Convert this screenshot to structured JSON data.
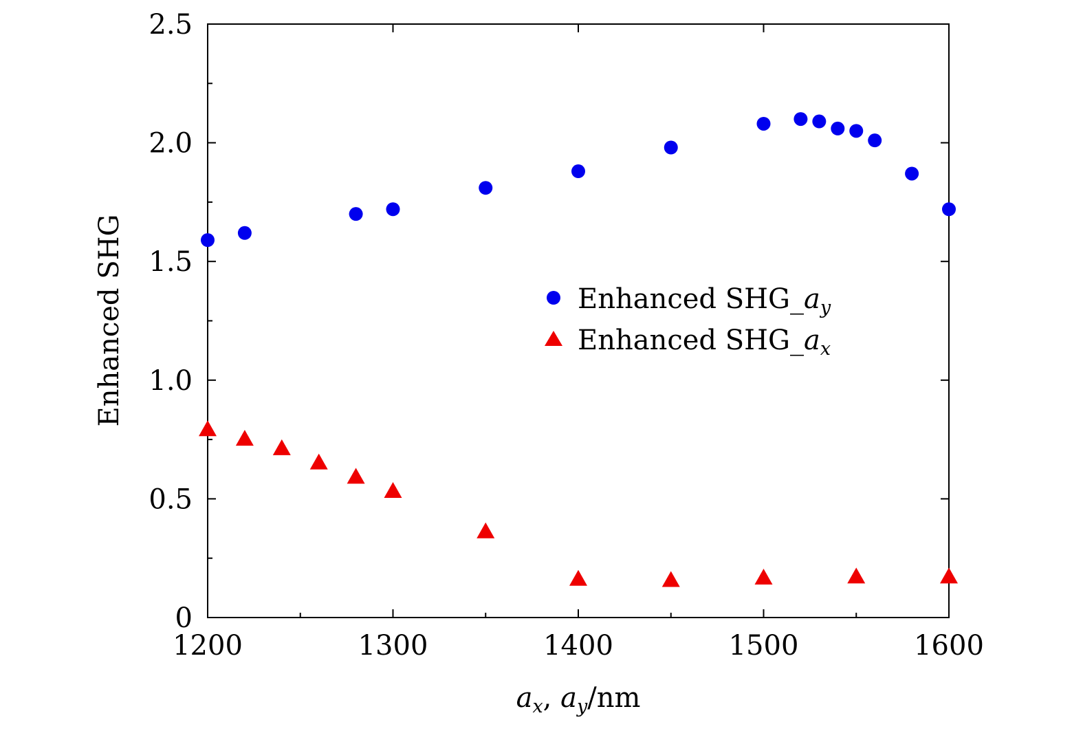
{
  "chart_data": {
    "type": "scatter",
    "title": "",
    "xlabel": {
      "var1": "a",
      "sub1": "x",
      "sep": ", ",
      "var2": "a",
      "sub2": "y",
      "unit": "/nm"
    },
    "ylabel": "Enhanced SHG",
    "xlim": [
      1200,
      1600
    ],
    "ylim": [
      0,
      2.5
    ],
    "x_ticks": [
      1200,
      1300,
      1400,
      1500,
      1600
    ],
    "x_tick_labels": [
      "1200",
      "1300",
      "1400",
      "1500",
      "1600"
    ],
    "x_minor_ticks": [
      1250,
      1350,
      1450,
      1550
    ],
    "y_ticks": [
      0,
      0.5,
      1.0,
      1.5,
      2.0,
      2.5
    ],
    "y_tick_labels": [
      "0",
      "0.5",
      "1.0",
      "1.5",
      "2.0",
      "2.5"
    ],
    "y_minor_ticks": [
      0.25,
      0.75,
      1.25,
      1.75,
      2.25
    ],
    "grid": false,
    "legend_position": "center-right",
    "series": [
      {
        "name": "Enhanced SHG_a_y",
        "legend_prefix": "Enhanced SHG_",
        "legend_var": "a",
        "legend_sub": "y",
        "marker": "circle",
        "color": "#0000ee",
        "points": [
          {
            "x": 1200,
            "y": 1.59
          },
          {
            "x": 1220,
            "y": 1.62
          },
          {
            "x": 1280,
            "y": 1.7
          },
          {
            "x": 1300,
            "y": 1.72
          },
          {
            "x": 1350,
            "y": 1.81
          },
          {
            "x": 1400,
            "y": 1.88
          },
          {
            "x": 1450,
            "y": 1.98
          },
          {
            "x": 1500,
            "y": 2.08
          },
          {
            "x": 1520,
            "y": 2.1
          },
          {
            "x": 1530,
            "y": 2.09
          },
          {
            "x": 1540,
            "y": 2.06
          },
          {
            "x": 1550,
            "y": 2.05
          },
          {
            "x": 1560,
            "y": 2.01
          },
          {
            "x": 1580,
            "y": 1.87
          },
          {
            "x": 1600,
            "y": 1.72
          }
        ]
      },
      {
        "name": "Enhanced SHG_a_x",
        "legend_prefix": "Enhanced SHG_",
        "legend_var": "a",
        "legend_sub": "x",
        "marker": "triangle",
        "color": "#ee0000",
        "points": [
          {
            "x": 1200,
            "y": 0.79
          },
          {
            "x": 1220,
            "y": 0.75
          },
          {
            "x": 1240,
            "y": 0.71
          },
          {
            "x": 1260,
            "y": 0.65
          },
          {
            "x": 1280,
            "y": 0.59
          },
          {
            "x": 1300,
            "y": 0.53
          },
          {
            "x": 1350,
            "y": 0.36
          },
          {
            "x": 1400,
            "y": 0.16
          },
          {
            "x": 1450,
            "y": 0.155
          },
          {
            "x": 1500,
            "y": 0.165
          },
          {
            "x": 1550,
            "y": 0.17
          },
          {
            "x": 1600,
            "y": 0.17
          }
        ]
      }
    ]
  }
}
